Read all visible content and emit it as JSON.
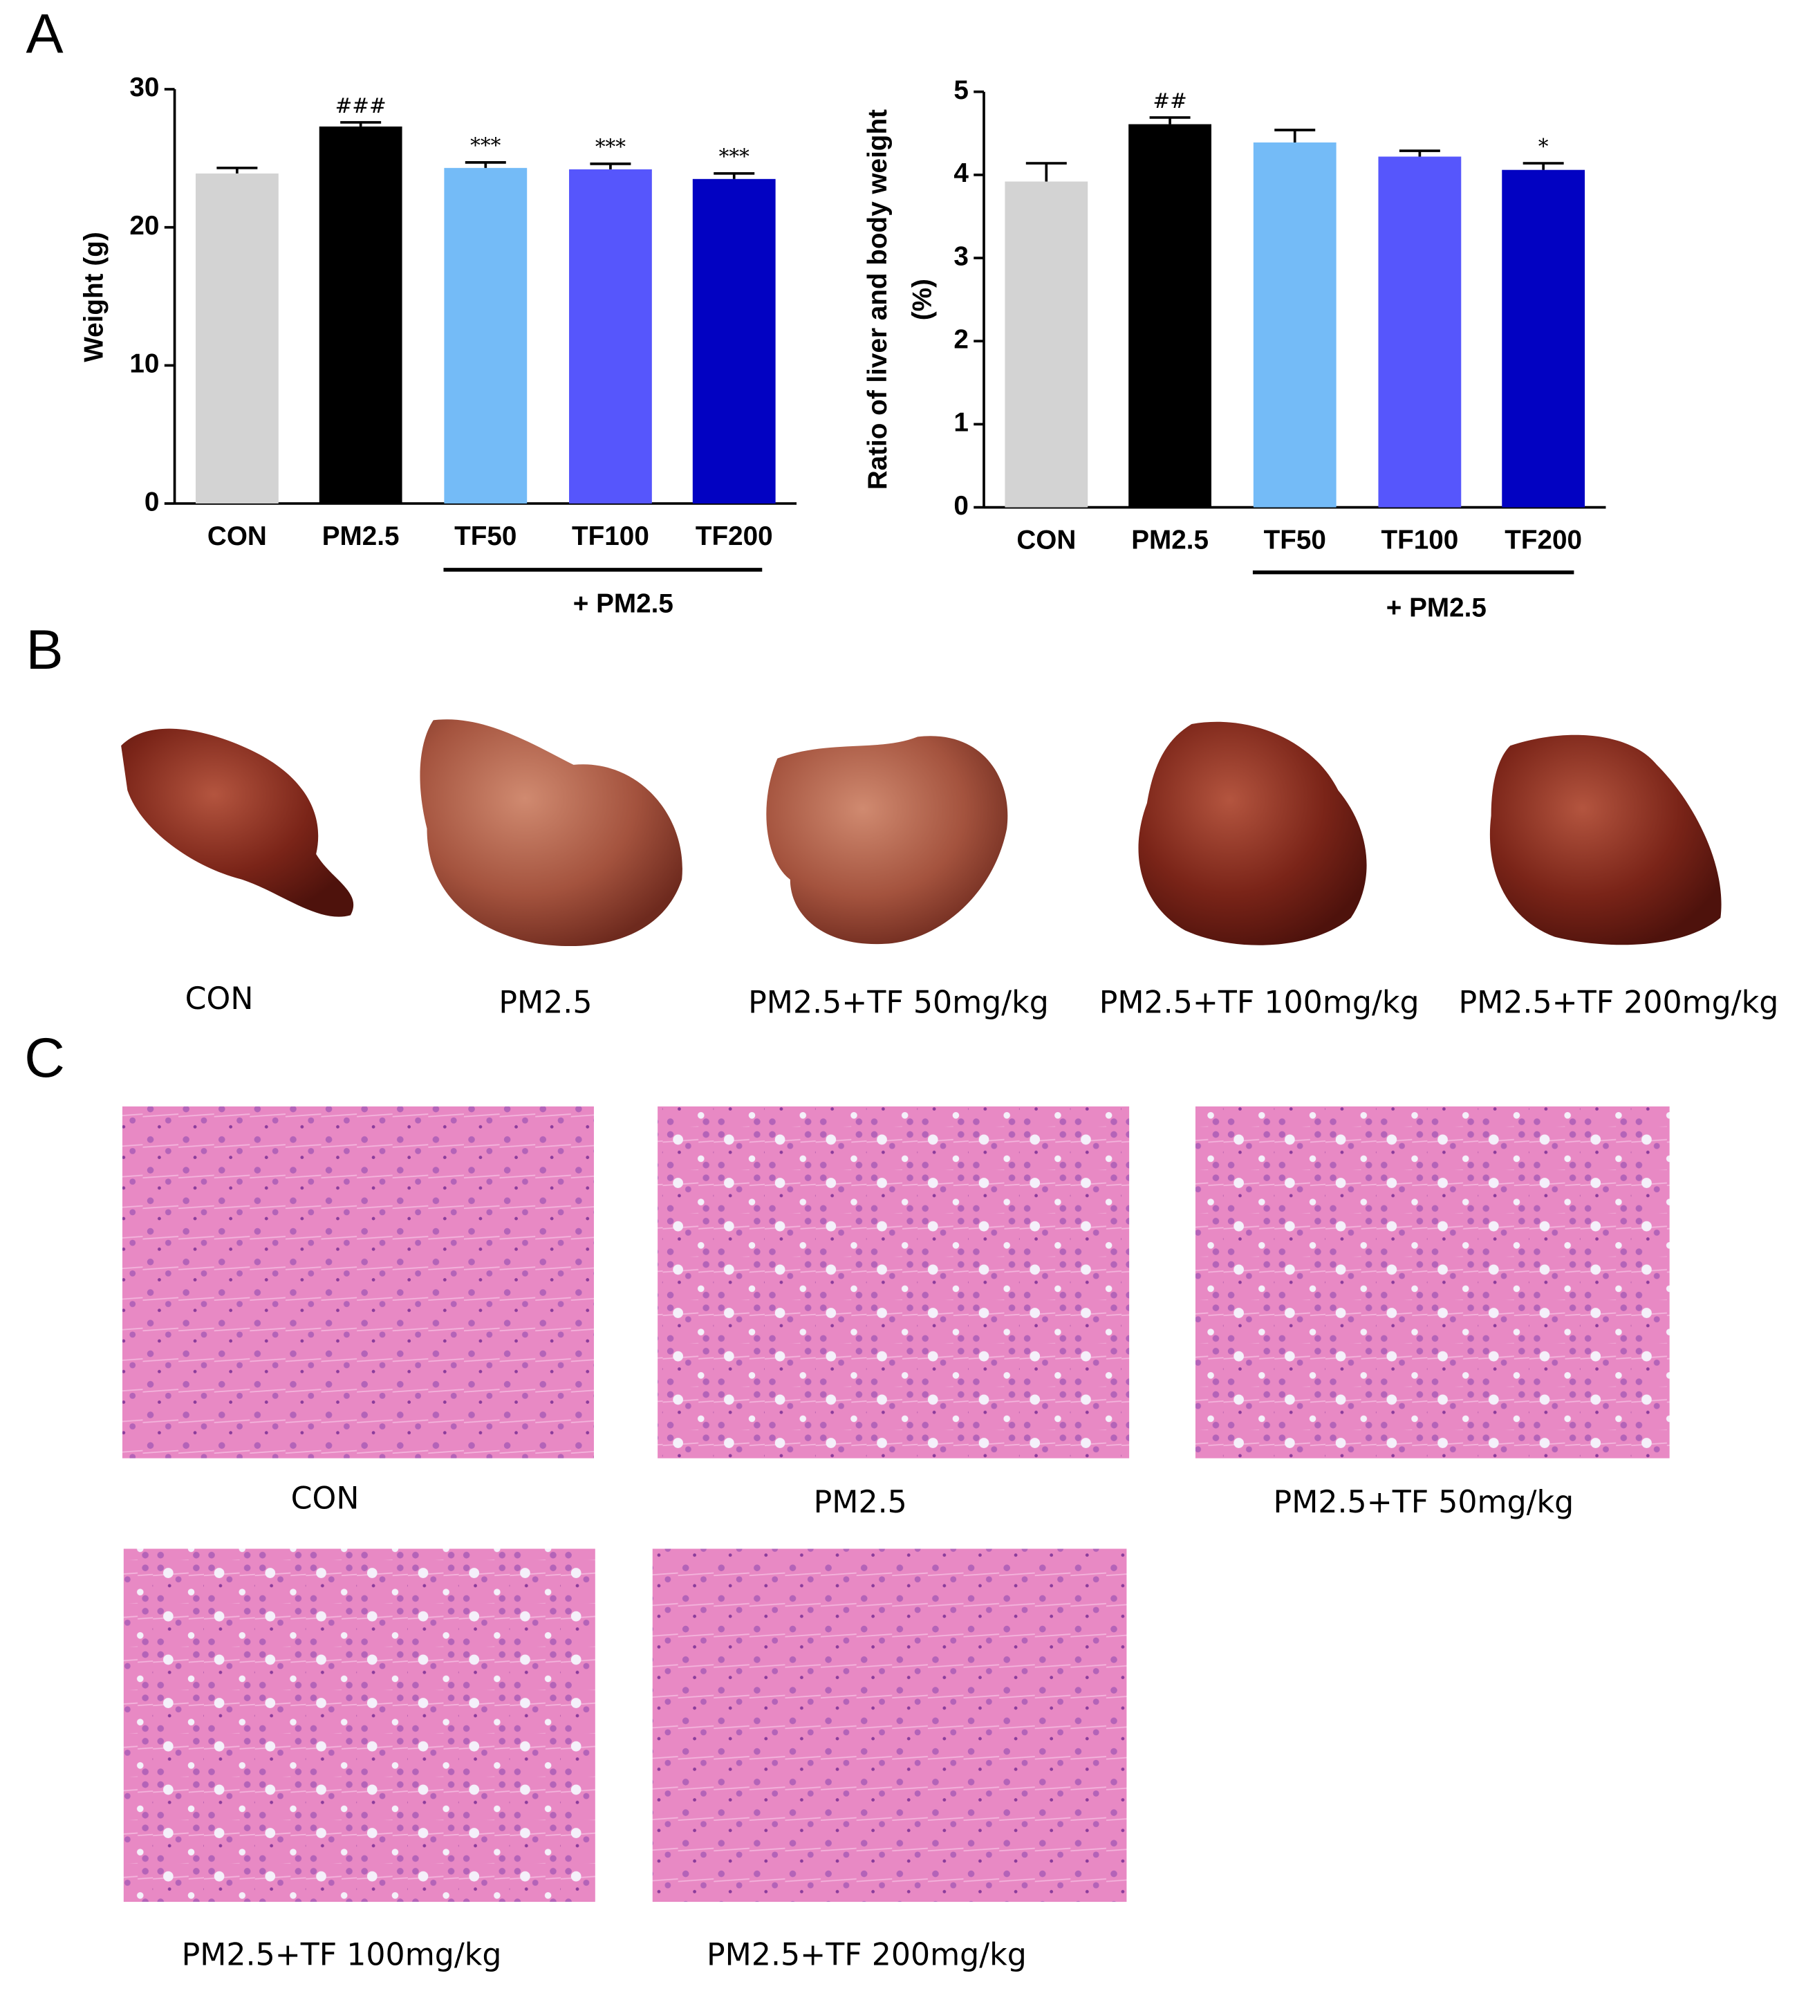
{
  "panel_labels": [
    "A",
    "B",
    "C"
  ],
  "chart_data": [
    {
      "type": "bar",
      "ylabel": "Weight (g)",
      "categories": [
        "CON",
        "PM2.5",
        "TF50",
        "TF100",
        "TF200"
      ],
      "values": [
        23.9,
        27.3,
        24.3,
        24.2,
        23.5
      ],
      "errors": [
        0.4,
        0.3,
        0.4,
        0.4,
        0.4
      ],
      "annotations": [
        null,
        "###",
        "***",
        "***",
        "***"
      ],
      "colors": [
        "#d3d3d3",
        "#000000",
        "#74bbf7",
        "#5656fc",
        "#0202c2"
      ],
      "group_label": "+ PM2.5",
      "ylim": [
        0,
        30
      ],
      "yticks": [
        0,
        10,
        20,
        30
      ]
    },
    {
      "type": "bar",
      "ylabel": [
        "Ratio of liver and body weight",
        "(%)"
      ],
      "categories": [
        "CON",
        "PM2.5",
        "TF50",
        "TF100",
        "TF200"
      ],
      "values": [
        3.92,
        4.61,
        4.39,
        4.22,
        4.06
      ],
      "errors": [
        0.22,
        0.08,
        0.15,
        0.07,
        0.08
      ],
      "annotations": [
        null,
        "##",
        null,
        null,
        "*"
      ],
      "colors": [
        "#d3d3d3",
        "#000000",
        "#74bbf7",
        "#5656fc",
        "#0202c2"
      ],
      "group_label": "+ PM2.5",
      "ylim": [
        0,
        5
      ],
      "yticks": [
        0,
        1,
        2,
        3,
        4,
        5
      ]
    }
  ],
  "photos": {
    "captions": [
      "CON",
      "PM2.5",
      "PM2.5+TF 50mg/kg",
      "PM2.5+TF 100mg/kg",
      "PM2.5+TF 200mg/kg"
    ]
  },
  "histology": {
    "captions": [
      "CON",
      "PM2.5",
      "PM2.5+TF 50mg/kg",
      "PM2.5+TF 100mg/kg",
      "PM2.5+TF 200mg/kg"
    ]
  }
}
